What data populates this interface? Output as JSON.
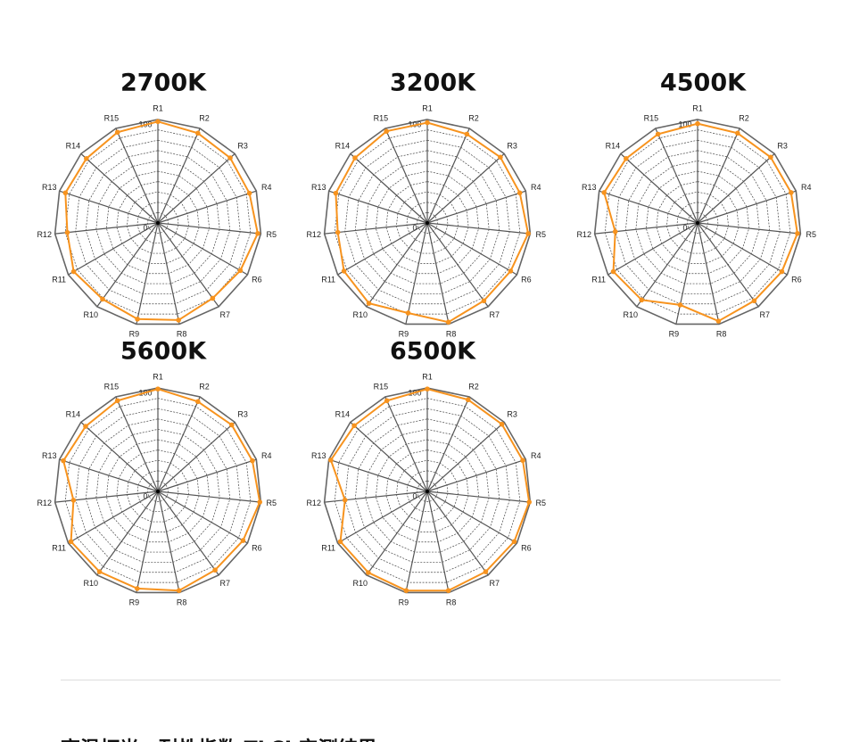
{
  "chart_data": [
    {
      "type": "radar",
      "title": "2700K",
      "categories": [
        "R1",
        "R2",
        "R3",
        "R4",
        "R5",
        "R6",
        "R7",
        "R8",
        "R9",
        "R10",
        "R11",
        "R12",
        "R13",
        "R14",
        "R15"
      ],
      "series": [
        {
          "color": "#f7931e",
          "values": [
            98,
            95,
            94,
            93,
            97,
            92,
            90,
            96,
            95,
            91,
            94,
            88,
            94,
            93,
            96
          ]
        }
      ],
      "rlim": [
        0,
        100
      ],
      "rticks": [
        0,
        100
      ],
      "grid": true
    },
    {
      "type": "radar",
      "title": "3200K",
      "categories": [
        "R1",
        "R2",
        "R3",
        "R4",
        "R5",
        "R6",
        "R7",
        "R8",
        "R9",
        "R10",
        "R11",
        "R12",
        "R13",
        "R14",
        "R15"
      ],
      "series": [
        {
          "color": "#f7931e",
          "values": [
            97,
            94,
            95,
            94,
            98,
            93,
            93,
            98,
            89,
            96,
            93,
            87,
            93,
            94,
            97
          ]
        }
      ],
      "rlim": [
        0,
        100
      ],
      "rticks": [
        0,
        100
      ],
      "grid": true
    },
    {
      "type": "radar",
      "title": "4500K",
      "categories": [
        "R1",
        "R2",
        "R3",
        "R4",
        "R5",
        "R6",
        "R7",
        "R8",
        "R9",
        "R10",
        "R11",
        "R12",
        "R13",
        "R14",
        "R15"
      ],
      "series": [
        {
          "color": "#f7931e",
          "values": [
            96,
            95,
            95,
            95,
            97,
            94,
            93,
            97,
            81,
            92,
            94,
            80,
            95,
            93,
            94
          ]
        }
      ],
      "rlim": [
        0,
        100
      ],
      "rticks": [
        0,
        100
      ],
      "grid": true
    },
    {
      "type": "radar",
      "title": "5600K",
      "categories": [
        "R1",
        "R2",
        "R3",
        "R4",
        "R5",
        "R6",
        "R7",
        "R8",
        "R9",
        "R10",
        "R11",
        "R12",
        "R13",
        "R14",
        "R15"
      ],
      "series": [
        {
          "color": "#f7931e",
          "values": [
            99,
            95,
            96,
            96,
            99,
            95,
            94,
            98,
            96,
            96,
            97,
            82,
            96,
            94,
            96
          ]
        }
      ],
      "rlim": [
        0,
        100
      ],
      "rticks": [
        0,
        100
      ],
      "grid": true
    },
    {
      "type": "radar",
      "title": "6500K",
      "categories": [
        "R1",
        "R2",
        "R3",
        "R4",
        "R5",
        "R6",
        "R7",
        "R8",
        "R9",
        "R10",
        "R11",
        "R12",
        "R13",
        "R14",
        "R15"
      ],
      "series": [
        {
          "color": "#f7931e",
          "values": [
            99,
            97,
            97,
            97,
            99,
            97,
            96,
            98,
            98,
            97,
            97,
            80,
            98,
            95,
            96
          ]
        }
      ],
      "rlim": [
        0,
        100
      ],
      "rticks": [
        0,
        100
      ],
      "grid": true
    }
  ],
  "footer": {
    "text": "高温打光，耐性指数 TLCI 实测结果"
  }
}
